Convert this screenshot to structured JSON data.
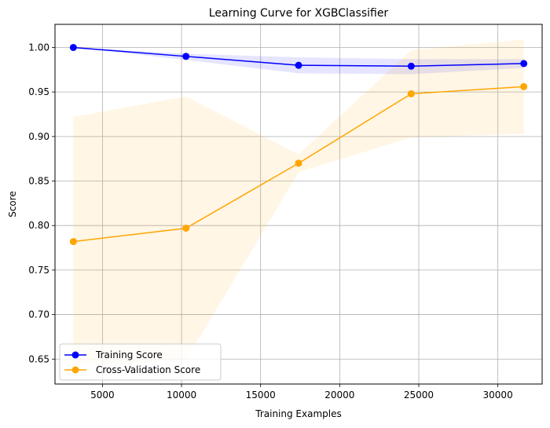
{
  "chart_data": {
    "type": "line",
    "title": "Learning Curve for XGBClassifier",
    "xlabel": "Training Examples",
    "ylabel": "Score",
    "xlim": [
      2000,
      32800
    ],
    "ylim": [
      0.622,
      1.026
    ],
    "xticks": [
      5000,
      10000,
      15000,
      20000,
      25000,
      30000
    ],
    "yticks": [
      0.65,
      0.7,
      0.75,
      0.8,
      0.85,
      0.9,
      0.95,
      1.0
    ],
    "grid": true,
    "legend_position": "lower-left",
    "x": [
      3160,
      10280,
      17400,
      24520,
      31640
    ],
    "series": [
      {
        "name": "Training Score",
        "color": "#0000ff",
        "band_color": "#0000ff",
        "values": [
          1.0,
          0.99,
          0.98,
          0.979,
          0.982
        ],
        "band_upper": [
          1.0,
          0.993,
          0.989,
          0.987,
          0.987
        ],
        "band_lower": [
          1.0,
          0.986,
          0.971,
          0.97,
          0.977
        ]
      },
      {
        "name": "Cross-Validation Score",
        "color": "#ffa500",
        "band_color": "#ffa500",
        "values": [
          0.782,
          0.797,
          0.87,
          0.948,
          0.956
        ],
        "band_upper": [
          0.922,
          0.945,
          0.88,
          0.997,
          1.009
        ],
        "band_lower": [
          0.642,
          0.649,
          0.86,
          0.899,
          0.903
        ]
      }
    ]
  }
}
